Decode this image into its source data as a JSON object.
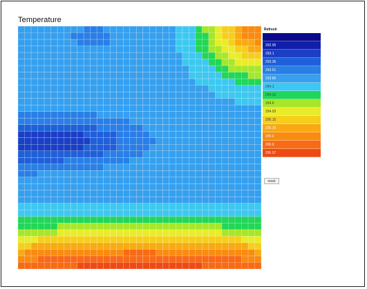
{
  "chart_data": {
    "type": "heatmap",
    "title": "Temperature",
    "grid": true,
    "rows": 37,
    "cols": 37,
    "legend": {
      "position": "right",
      "header": "Refresh",
      "entries": [
        {
          "label": "",
          "color": "#0a0a8c"
        },
        {
          "label": "292.95",
          "color": "#0f1fa8"
        },
        {
          "label": "293.1",
          "color": "#1a3fc4"
        },
        {
          "label": "293.36",
          "color": "#1f5fd8"
        },
        {
          "label": "293.61",
          "color": "#2a7fe6"
        },
        {
          "label": "293.86",
          "color": "#36a0ee"
        },
        {
          "label": "294.1",
          "color": "#3cc8f0"
        },
        {
          "label": "294.32",
          "color": "#22d658"
        },
        {
          "label": "294.6",
          "color": "#a8e62a"
        },
        {
          "label": "294.93",
          "color": "#e8ec2a"
        },
        {
          "label": "295.15",
          "color": "#f6cf1c"
        },
        {
          "label": "295.39",
          "color": "#f8aa12"
        },
        {
          "label": "295.6",
          "color": "#f98c10"
        },
        {
          "label": "295.8",
          "color": "#f86a14"
        },
        {
          "label": "295.97",
          "color": "#ee4a14"
        }
      ],
      "reset_label": "reset"
    },
    "field_model": {
      "description_free": true,
      "levels": 15,
      "base": 5.0,
      "blobs": [
        {
          "cx": 0.0,
          "cy": 0.48,
          "sx": 0.35,
          "sy": 0.1,
          "amp": -2.6
        },
        {
          "cx": 0.25,
          "cy": 0.47,
          "sx": 0.25,
          "sy": 0.08,
          "amp": -1.3
        },
        {
          "cx": 0.3,
          "cy": 0.05,
          "sx": 0.18,
          "sy": 0.1,
          "amp": -0.6
        },
        {
          "cx": 1.0,
          "cy": 0.0,
          "sx": 0.22,
          "sy": 0.2,
          "amp": 7.5
        },
        {
          "cx": 0.5,
          "cy": 1.0,
          "sx": 1.2,
          "sy": 0.16,
          "amp": 9.0
        }
      ]
    }
  }
}
